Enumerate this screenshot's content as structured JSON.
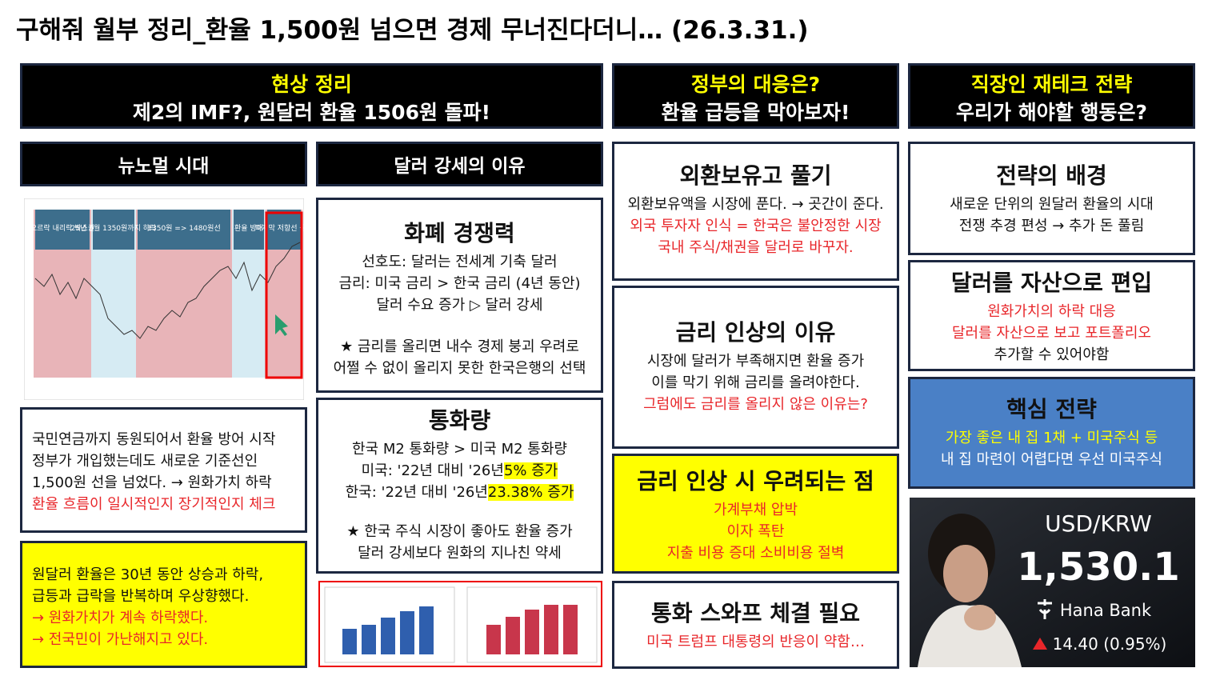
{
  "header": {
    "title": "구해줘 월부 정리_환율 1,500원 넘으면 경제 무너진다더니… (26.3.31.)"
  },
  "sections": [
    {
      "title": "현상 정리",
      "subtitle": "제2의 IMF?, 원달러 환율 1506원 돌파!"
    },
    {
      "title": "정부의 대응은?",
      "subtitle": "환율 급등을 막아보자!"
    },
    {
      "title": "직장인 재테크 전략",
      "subtitle": "우리가 해야할 행동은?"
    }
  ],
  "subheaders": [
    "뉴노멀 시대",
    "달러 강세의 이유"
  ],
  "chart_image": {
    "labels": [
      "오르락 내리락 박스권",
      "25년 6월 1350원까지 하락",
      "1350원 => 1480원선",
      "환율 방어",
      "마지막 저항선 돌파"
    ]
  },
  "cards": [
    {
      "lines": [
        "국민연금까지 동원되어서 환율 방어 시작",
        "정부가 개입했는데도 새로운 기준선인",
        "1,500원 선을 넘었다. → 원화가치 하락",
        "환율 흐름이 일시적인지 장기적인지 체크"
      ]
    },
    {
      "lines": [
        "원달러 환율은 30년 동안 상승과 하락,",
        "급등과 급락을 반복하며 우상향했다.",
        "→ 원화가치가 계속 하락했다.",
        "→ 전국민이 가난해지고 있다."
      ]
    },
    {
      "heading": "화폐 경쟁력",
      "lines": [
        "선호도: 달러는 전세계 기축 달러",
        "금리: 미국 금리 > 한국 금리 (4년 동안)",
        "달러 수요 증가 ▷ 달러 강세",
        "★ 금리를 올리면 내수 경제 붕괴 우려로",
        "어쩔 수 없이 올리지 못한 한국은행의 선택"
      ]
    },
    {
      "heading": "통화량",
      "lines": [
        "한국 M2 통화량 > 미국 M2 통화량",
        "미국: '22년 대비 '26년",
        "5% 증가",
        "한국: '22년 대비 '26년",
        "23.38% 증가",
        "★ 한국 주식 시장이 좋아도 환율 증가",
        "달러 강세보다 원화의 지나친 약세"
      ]
    },
    {
      "heading": "외환보유고 풀기",
      "lines": [
        "외환보유액을 시장에 푼다. → 곳간이 준다.",
        "외국 투자자 인식 = 한국은 불안정한 시장",
        "국내 주식/채권을 달러로 바꾸자."
      ]
    },
    {
      "heading": "금리 인상의 이유",
      "lines": [
        "시장에 달러가 부족해지면 환율 증가",
        "이를 막기 위해 금리를 올려야한다.",
        "그럼에도 금리를 올리지 않은 이유는?"
      ]
    },
    {
      "heading": "금리 인상 시 우려되는 점",
      "lines": [
        "가계부채 압박",
        "이자 폭탄",
        "지출 비용 증대 소비비용 절벽"
      ]
    },
    {
      "heading": "통화 스와프 체결 필요",
      "lines": [
        "미국 트럼프 대통령의 반응이 약함…"
      ]
    },
    {
      "heading": "전략의 배경",
      "lines": [
        "새로운 단위의 원달러 환율의 시대",
        "전쟁 추경 편성 → 추가 돈 풀림"
      ]
    },
    {
      "heading": "달러를 자산으로 편입",
      "lines": [
        "원화가치의 하락 대응",
        "달러를 자산으로 보고 포트폴리오",
        "추가할 수 있어야함"
      ]
    },
    {
      "heading": "핵심 전략",
      "lines": [
        "가장 좋은 내 집 1채 + 미국주식 등",
        "내 집 마련이 어렵다면 우선 미국주식"
      ]
    }
  ],
  "photo": {
    "pair": "USD/KRW",
    "rate": "1,530.1",
    "bank": "Hana Bank",
    "change": "14.40 (0.95%)"
  }
}
